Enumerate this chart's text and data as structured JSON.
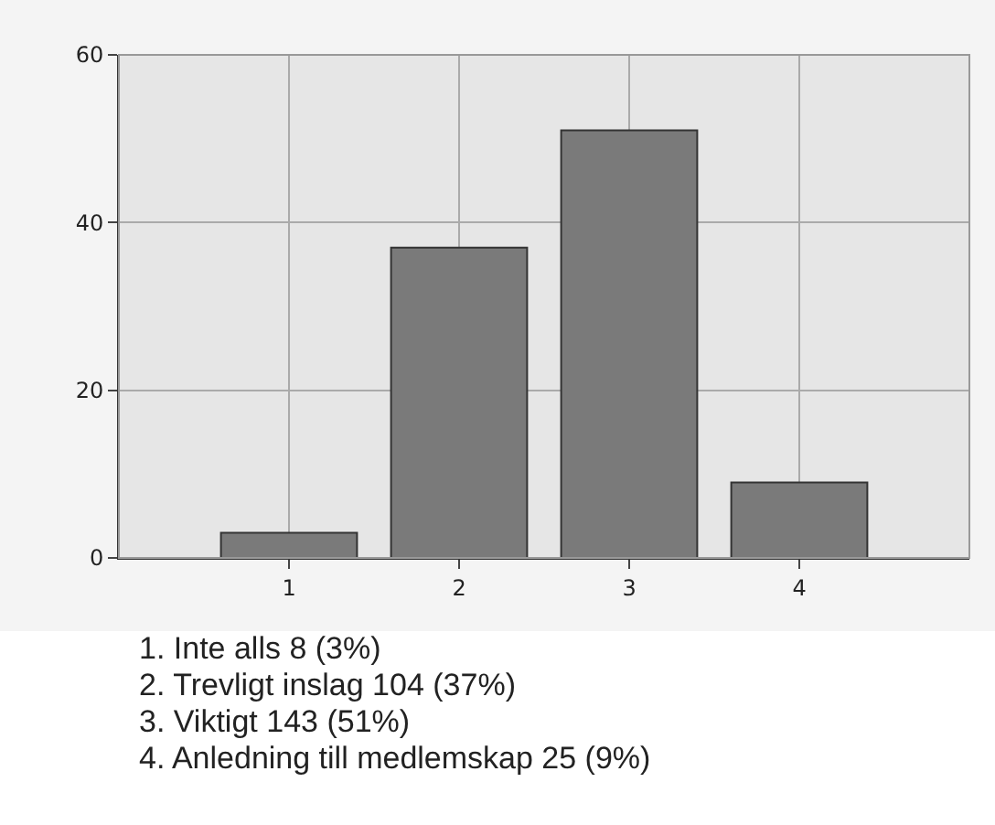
{
  "chart_data": {
    "type": "bar",
    "categories": [
      "1",
      "2",
      "3",
      "4"
    ],
    "values": [
      3,
      37,
      51,
      9
    ],
    "color": "#7a7a7a",
    "ylim": [
      0,
      60
    ],
    "yticks": [
      0,
      20,
      40,
      60
    ],
    "grid": true,
    "annotations": [
      "1.  Inte alls   8  (3%)",
      "2.  Trevligt inslag   104  (37%)",
      "3.  Viktigt   143  (51%)",
      "4.  Anledning till medlemskap   25  (9%)"
    ]
  }
}
